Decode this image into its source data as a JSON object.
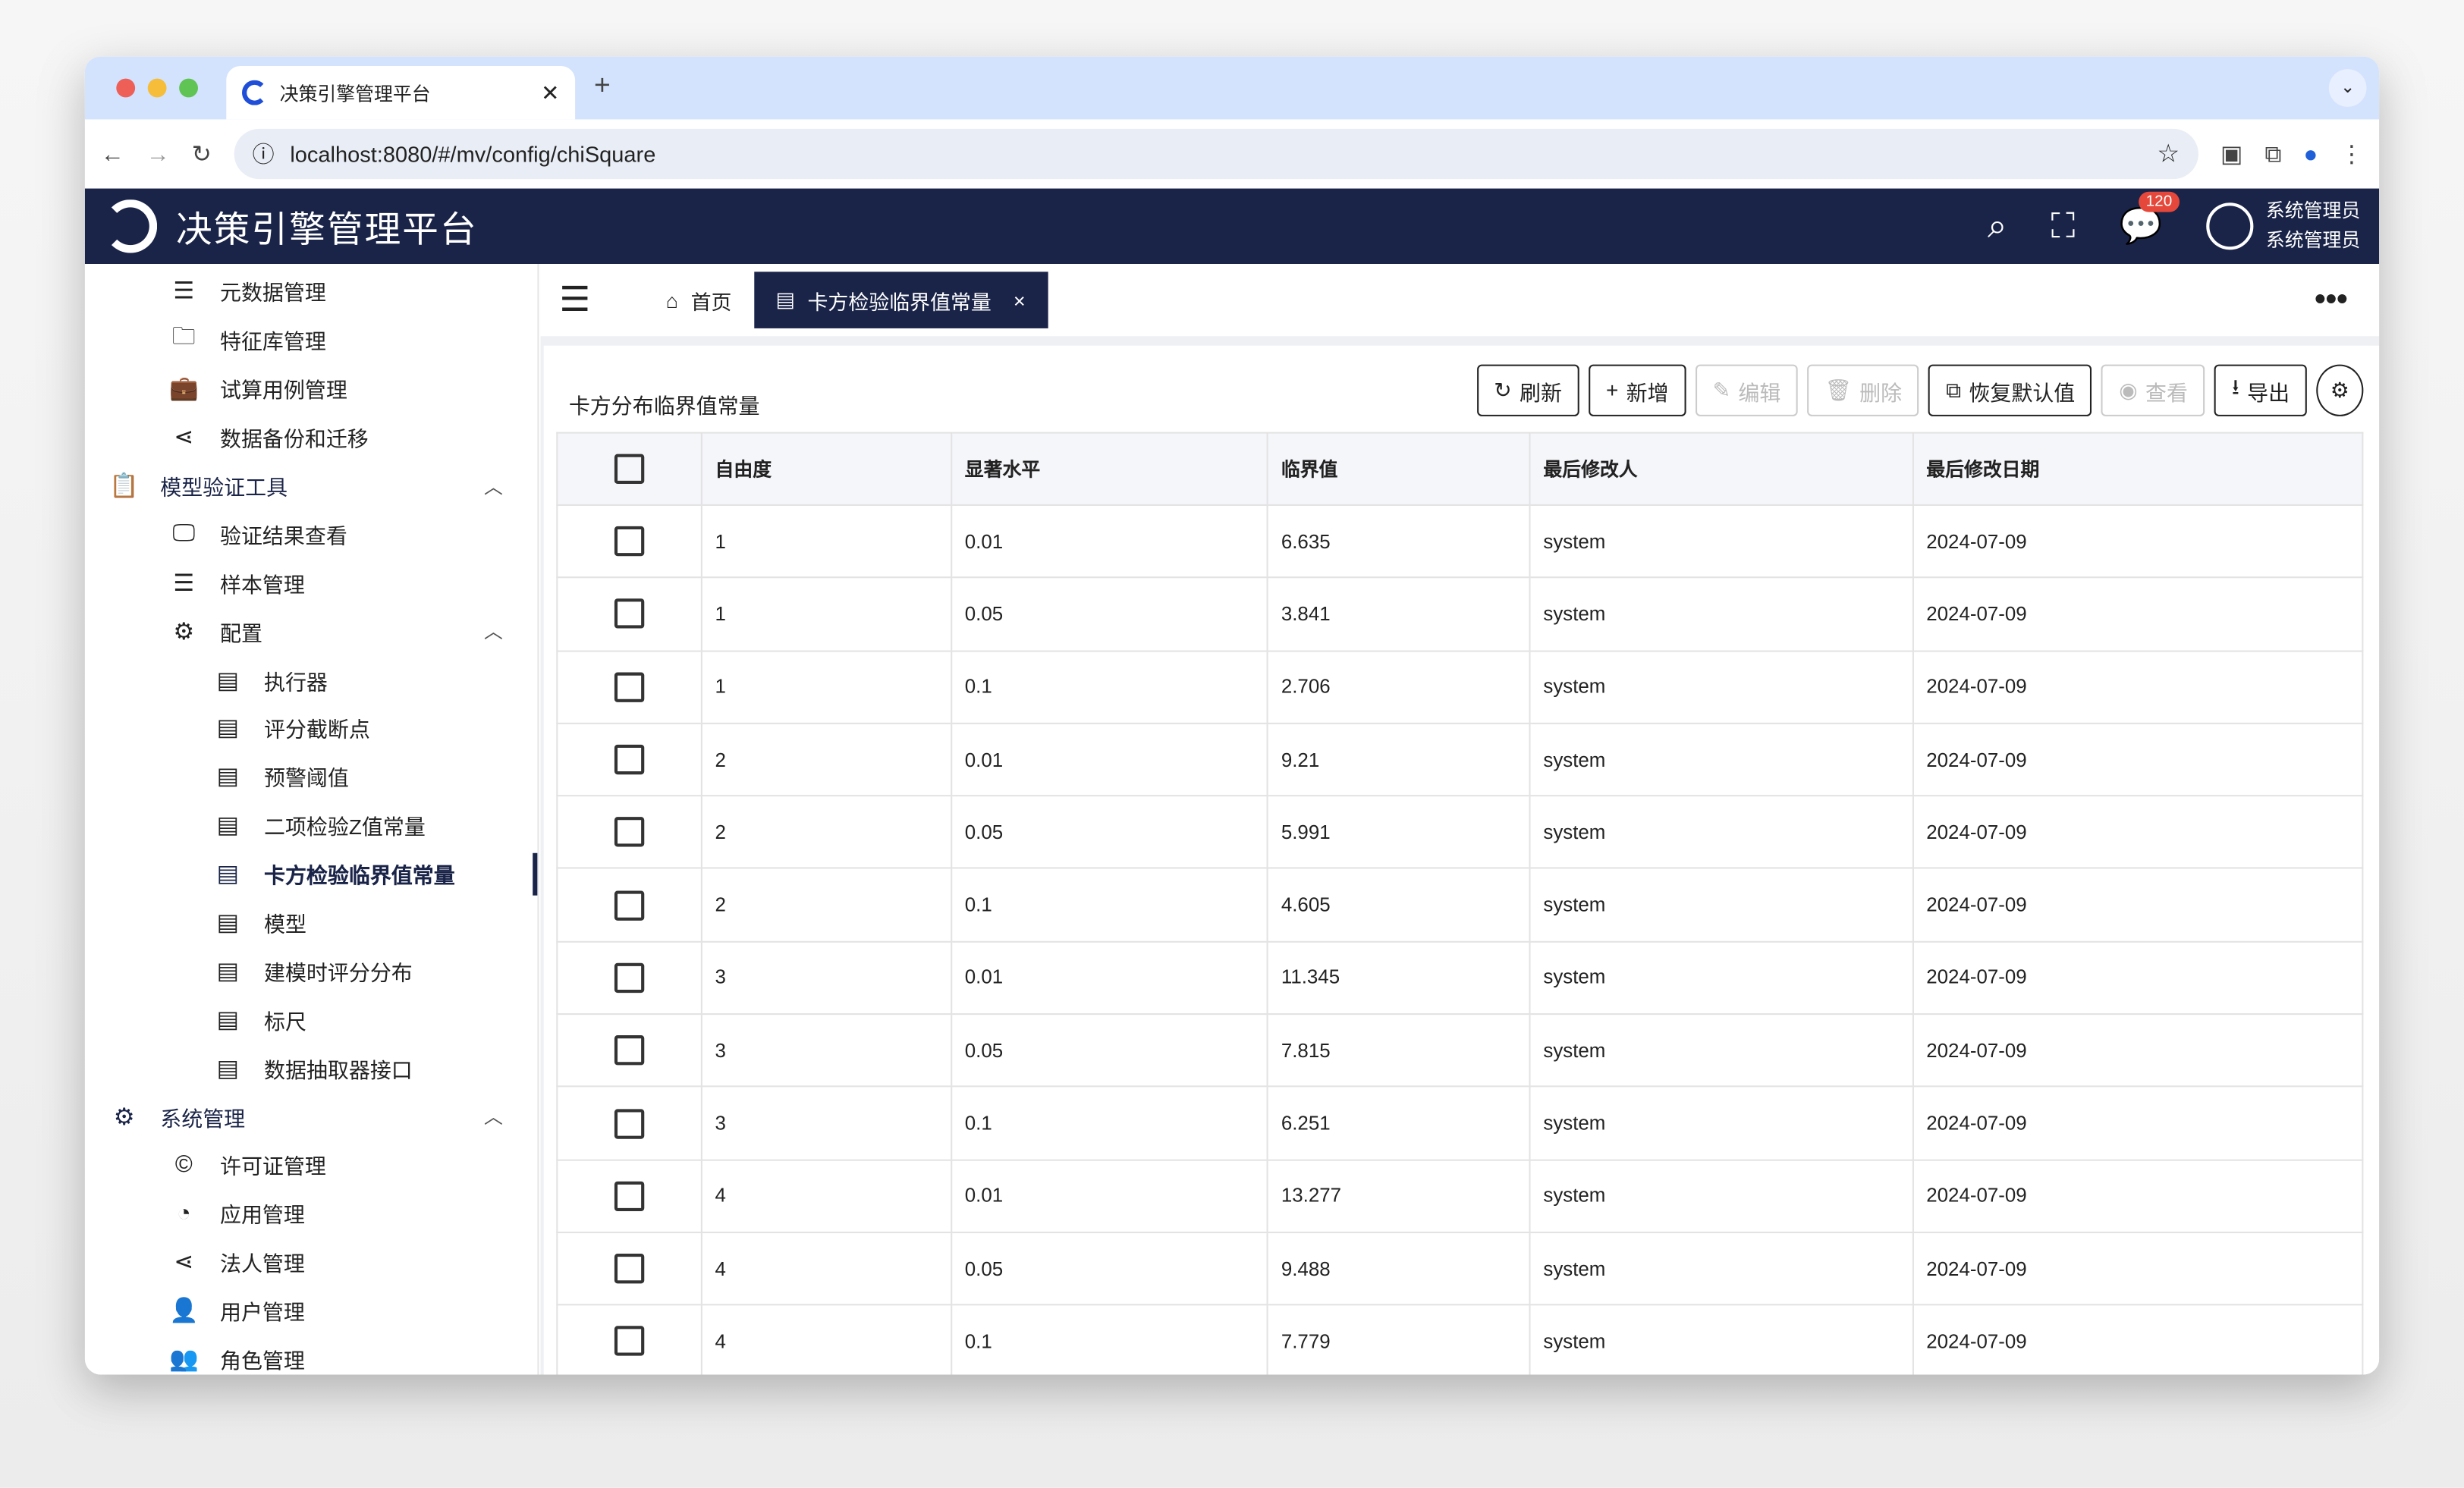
{
  "browser": {
    "tab_title": "决策引擎管理平台",
    "url": "localhost:8080/#/mv/config/chiSquare"
  },
  "header": {
    "title": "决策引擎管理平台",
    "notification_count": "120",
    "user_name": "系统管理员",
    "user_role": "系统管理员"
  },
  "sidebar": {
    "items": [
      {
        "label": "元数据管理",
        "icon": "list-icon",
        "level": 2
      },
      {
        "label": "特征库管理",
        "icon": "folder-icon",
        "level": 2
      },
      {
        "label": "试算用例管理",
        "icon": "briefcase-icon",
        "level": 2
      },
      {
        "label": "数据备份和迁移",
        "icon": "share-icon",
        "level": 2
      },
      {
        "label": "模型验证工具",
        "icon": "clipboard-check-icon",
        "level": 1,
        "expanded": true
      },
      {
        "label": "验证结果查看",
        "icon": "monitor-icon",
        "level": 2
      },
      {
        "label": "样本管理",
        "icon": "list-icon",
        "level": 2
      },
      {
        "label": "配置",
        "icon": "gear-icon",
        "level": 2,
        "expanded": true
      },
      {
        "label": "执行器",
        "icon": "doc-icon",
        "level": 3
      },
      {
        "label": "评分截断点",
        "icon": "doc-icon",
        "level": 3
      },
      {
        "label": "预警阈值",
        "icon": "doc-icon",
        "level": 3
      },
      {
        "label": "二项检验Z值常量",
        "icon": "doc-icon",
        "level": 3
      },
      {
        "label": "卡方检验临界值常量",
        "icon": "doc-icon",
        "level": 3,
        "active": true
      },
      {
        "label": "模型",
        "icon": "doc-icon",
        "level": 3
      },
      {
        "label": "建模时评分分布",
        "icon": "doc-icon",
        "level": 3
      },
      {
        "label": "标尺",
        "icon": "doc-icon",
        "level": 3
      },
      {
        "label": "数据抽取器接口",
        "icon": "doc-icon",
        "level": 3
      },
      {
        "label": "系统管理",
        "icon": "gear-icon",
        "level": 1,
        "expanded": true
      },
      {
        "label": "许可证管理",
        "icon": "copyright-icon",
        "level": 2
      },
      {
        "label": "应用管理",
        "icon": "app-icon",
        "level": 2
      },
      {
        "label": "法人管理",
        "icon": "share-icon",
        "level": 2
      },
      {
        "label": "用户管理",
        "icon": "user-icon",
        "level": 2
      },
      {
        "label": "角色管理",
        "icon": "users-icon",
        "level": 2
      }
    ]
  },
  "page_tabs": {
    "home": "首页",
    "current": "卡方检验临界值常量"
  },
  "card": {
    "title": "卡方分布临界值常量"
  },
  "toolbar": {
    "refresh": "刷新",
    "add": "新增",
    "edit": "编辑",
    "delete": "删除",
    "restore": "恢复默认值",
    "view": "查看",
    "export": "导出"
  },
  "table": {
    "columns": [
      "自由度",
      "显著水平",
      "临界值",
      "最后修改人",
      "最后修改日期"
    ],
    "rows": [
      [
        "1",
        "0.01",
        "6.635",
        "system",
        "2024-07-09"
      ],
      [
        "1",
        "0.05",
        "3.841",
        "system",
        "2024-07-09"
      ],
      [
        "1",
        "0.1",
        "2.706",
        "system",
        "2024-07-09"
      ],
      [
        "2",
        "0.01",
        "9.21",
        "system",
        "2024-07-09"
      ],
      [
        "2",
        "0.05",
        "5.991",
        "system",
        "2024-07-09"
      ],
      [
        "2",
        "0.1",
        "4.605",
        "system",
        "2024-07-09"
      ],
      [
        "3",
        "0.01",
        "11.345",
        "system",
        "2024-07-09"
      ],
      [
        "3",
        "0.05",
        "7.815",
        "system",
        "2024-07-09"
      ],
      [
        "3",
        "0.1",
        "6.251",
        "system",
        "2024-07-09"
      ],
      [
        "4",
        "0.01",
        "13.277",
        "system",
        "2024-07-09"
      ],
      [
        "4",
        "0.05",
        "9.488",
        "system",
        "2024-07-09"
      ],
      [
        "4",
        "0.1",
        "7.779",
        "system",
        "2024-07-09"
      ]
    ]
  },
  "colors": {
    "brand": "#1a2448",
    "tabbar": "#d3e3fd",
    "badge": "#e5483b"
  }
}
